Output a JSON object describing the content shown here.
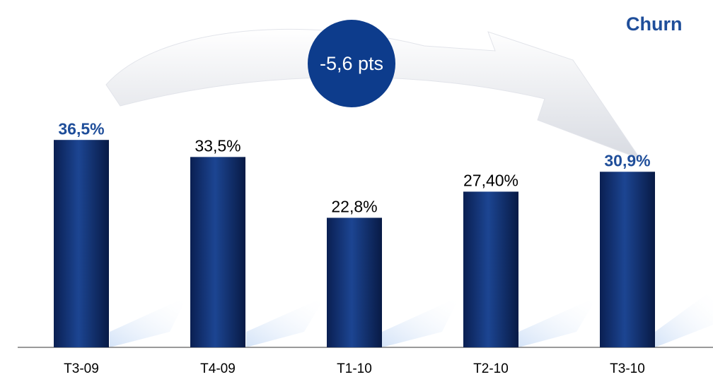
{
  "chart_data": {
    "type": "bar",
    "title": "Churn",
    "annotation": "-5,6 pts",
    "categories": [
      "T3-09",
      "T4-09",
      "T1-10",
      "T2-10",
      "T3-10"
    ],
    "values": [
      36.5,
      33.5,
      22.8,
      27.4,
      30.9
    ],
    "value_labels": [
      "36,5%",
      "33,5%",
      "22,8%",
      "27,40%",
      "30,9%"
    ],
    "value_label_colors": [
      "#1f4e9a",
      "#000000",
      "#000000",
      "#000000",
      "#1f4e9a"
    ],
    "value_label_bold": [
      true,
      false,
      false,
      false,
      true
    ],
    "color": "#0d2b6b",
    "ylim": [
      0,
      61
    ]
  }
}
